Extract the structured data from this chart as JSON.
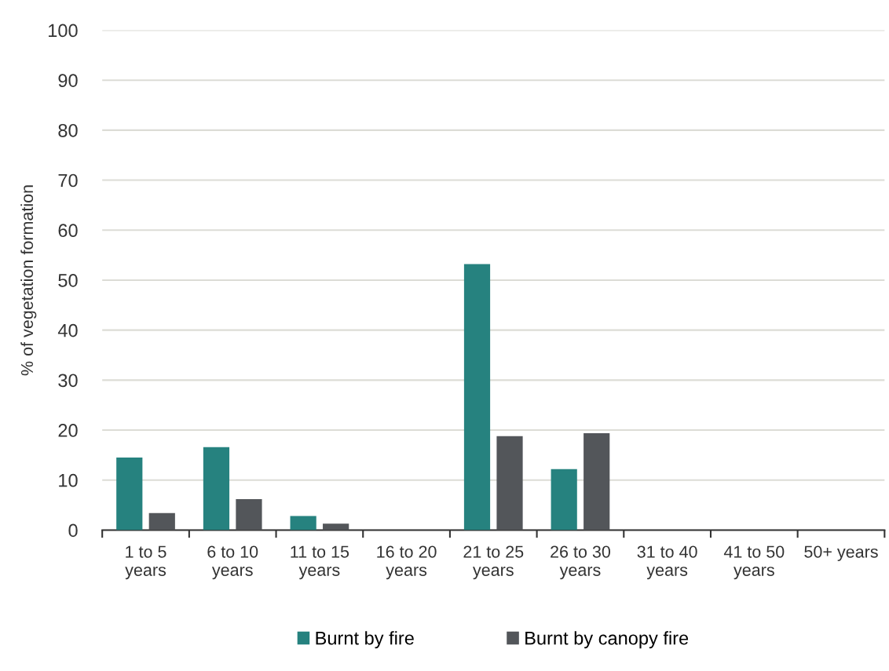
{
  "chart_data": {
    "type": "bar",
    "ylabel": "% of vegetation formation",
    "categories": [
      "1 to 5\nyears",
      "6 to 10\nyears",
      "11 to 15\nyears",
      "16 to 20\nyears",
      "21 to 25\nyears",
      "26 to 30\nyears",
      "31 to 40\nyears",
      "41 to 50\nyears",
      "50+ years"
    ],
    "series": [
      {
        "name": "Burnt by fire",
        "color": "#26827f",
        "values": [
          14.5,
          16.6,
          2.8,
          0,
          53.2,
          12.2,
          0,
          0,
          0
        ]
      },
      {
        "name": "Burnt by canopy fire",
        "color": "#53565a",
        "values": [
          3.4,
          6.2,
          1.3,
          0,
          18.8,
          19.4,
          0,
          0,
          0
        ]
      }
    ],
    "ylim": [
      0,
      100
    ],
    "yticks": [
      0,
      10,
      20,
      30,
      40,
      50,
      60,
      70,
      80,
      90,
      100
    ],
    "grid": "y",
    "legend": "bottom"
  }
}
